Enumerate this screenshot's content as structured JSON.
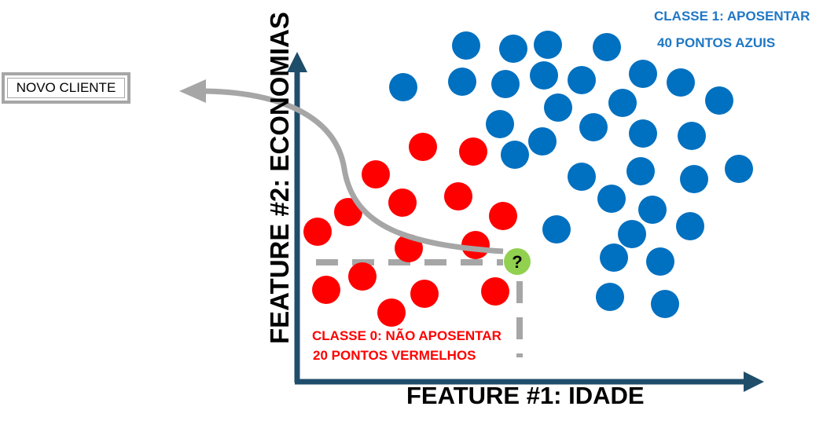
{
  "novo_cliente": "NOVO CLIENTE",
  "classe1": {
    "line1": "CLASSE 1: APOSENTAR",
    "line2": "40 PONTOS AZUIS",
    "color": "#0070c0"
  },
  "classe0": {
    "line1": "CLASSE 0: NÃO APOSENTAR",
    "line2": "20 PONTOS VERMELHOS",
    "color": "#ff0000"
  },
  "x_axis_label": "FEATURE #1: IDADE",
  "y_axis_label": "FEATURE #2: ECONOMIAS",
  "query_point": {
    "symbol": "?",
    "color": "#92d050"
  },
  "colors": {
    "axis": "#1f4e6b",
    "guide": "#a6a6a6"
  }
}
